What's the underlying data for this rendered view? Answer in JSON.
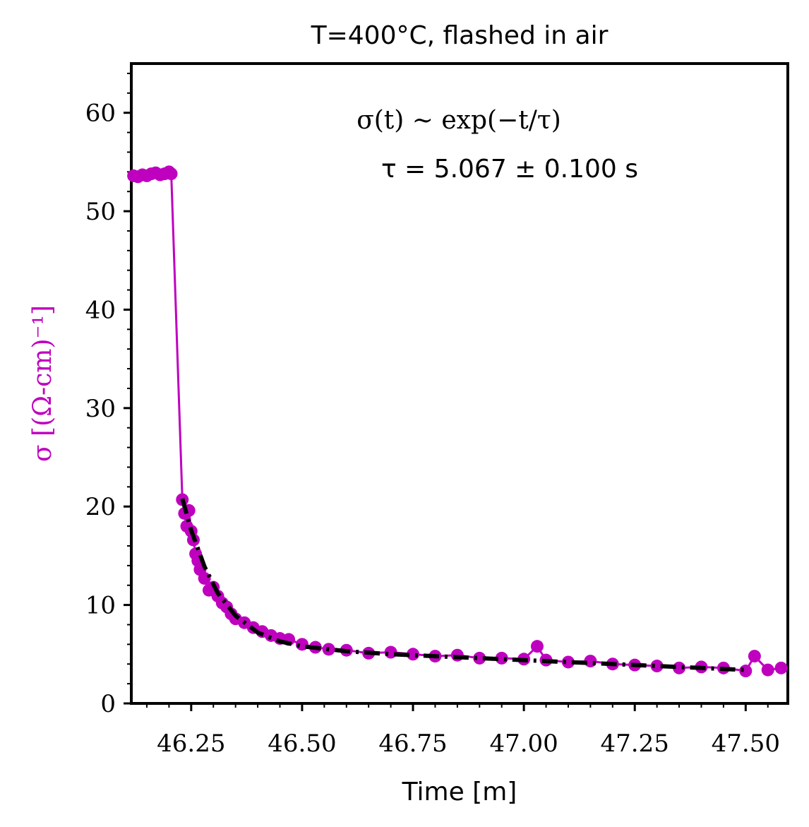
{
  "chart_data": {
    "type": "scatter",
    "title": "T=400°C, flashed in air",
    "xlabel": "Time [m]",
    "ylabel": "σ [(Ω-cm)⁻¹]",
    "xlim": [
      46.115,
      47.595
    ],
    "ylim": [
      0,
      65
    ],
    "xticks": [
      46.25,
      46.5,
      46.75,
      47.0,
      47.25,
      47.5
    ],
    "xtick_labels": [
      "46.25",
      "46.50",
      "46.75",
      "47.00",
      "47.25",
      "47.50"
    ],
    "yticks": [
      0,
      10,
      20,
      30,
      40,
      50,
      60
    ],
    "ytick_labels": [
      "0",
      "10",
      "20",
      "30",
      "40",
      "50",
      "60"
    ],
    "grid": false,
    "legend": null,
    "annotations": {
      "formula": "σ(t) ∼ exp(−t/τ)",
      "tau": "τ = 5.067 ± 0.100 s"
    },
    "colors": {
      "data": "#bf00bf",
      "fit": "#000000",
      "ylabel": "#bf00bf"
    },
    "series": [
      {
        "style": "markers-line",
        "x": [
          46.12,
          46.13,
          46.14,
          46.15,
          46.16,
          46.17,
          46.18,
          46.19,
          46.2,
          46.205,
          46.23,
          46.235,
          46.24,
          46.245,
          46.25,
          46.255,
          46.26,
          46.265,
          46.27,
          46.28,
          46.29,
          46.3,
          46.31,
          46.32,
          46.33,
          46.34,
          46.35,
          46.37,
          46.39,
          46.41,
          46.43,
          46.45,
          46.47,
          46.5,
          46.53,
          46.56,
          46.6,
          46.65,
          46.7,
          46.75,
          46.8,
          46.85,
          46.9,
          46.95,
          47.0,
          47.03,
          47.05,
          47.1,
          47.15,
          47.2,
          47.25,
          47.3,
          47.35,
          47.4,
          47.45,
          47.5,
          47.52,
          47.55,
          47.58
        ],
        "y": [
          53.6,
          53.5,
          53.7,
          53.6,
          53.8,
          53.9,
          53.7,
          53.8,
          54.0,
          53.8,
          20.7,
          19.3,
          18.0,
          19.6,
          17.5,
          16.6,
          15.2,
          14.5,
          13.6,
          12.7,
          11.5,
          11.8,
          10.9,
          10.2,
          9.8,
          9.1,
          8.6,
          8.2,
          7.7,
          7.3,
          6.9,
          6.6,
          6.5,
          6.0,
          5.7,
          5.5,
          5.4,
          5.1,
          5.2,
          5.0,
          4.8,
          4.9,
          4.6,
          4.6,
          4.5,
          5.8,
          4.4,
          4.2,
          4.3,
          4.0,
          3.9,
          3.8,
          3.6,
          3.7,
          3.6,
          3.3,
          4.8,
          3.4,
          3.6
        ]
      },
      {
        "style": "dash-dot",
        "x": [
          46.23,
          46.25,
          46.28,
          46.31,
          46.35,
          46.4,
          46.45,
          46.5,
          46.6,
          46.7,
          46.8,
          46.9,
          47.0,
          47.1,
          47.2,
          47.3,
          47.4,
          47.5
        ],
        "y": [
          20.8,
          17.6,
          13.9,
          11.2,
          8.9,
          7.2,
          6.3,
          5.8,
          5.3,
          5.0,
          4.8,
          4.6,
          4.4,
          4.2,
          4.0,
          3.8,
          3.6,
          3.4
        ]
      }
    ]
  }
}
